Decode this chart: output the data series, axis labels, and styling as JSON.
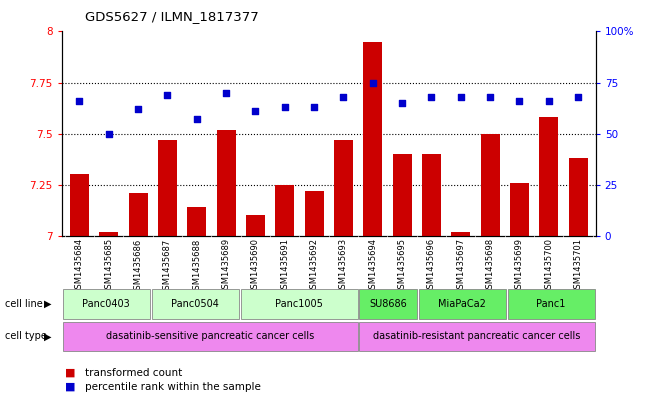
{
  "title": "GDS5627 / ILMN_1817377",
  "samples": [
    "GSM1435684",
    "GSM1435685",
    "GSM1435686",
    "GSM1435687",
    "GSM1435688",
    "GSM1435689",
    "GSM1435690",
    "GSM1435691",
    "GSM1435692",
    "GSM1435693",
    "GSM1435694",
    "GSM1435695",
    "GSM1435696",
    "GSM1435697",
    "GSM1435698",
    "GSM1435699",
    "GSM1435700",
    "GSM1435701"
  ],
  "transformed_count": [
    7.3,
    7.02,
    7.21,
    7.47,
    7.14,
    7.52,
    7.1,
    7.25,
    7.22,
    7.47,
    7.95,
    7.4,
    7.4,
    7.02,
    7.5,
    7.26,
    7.58,
    7.38
  ],
  "percentile_rank": [
    66,
    50,
    62,
    69,
    57,
    70,
    61,
    63,
    63,
    68,
    75,
    65,
    68,
    68,
    68,
    66,
    66,
    68
  ],
  "cell_lines": [
    {
      "name": "Panc0403",
      "start": 0,
      "end": 2,
      "color": "#ccffcc"
    },
    {
      "name": "Panc0504",
      "start": 3,
      "end": 5,
      "color": "#ccffcc"
    },
    {
      "name": "Panc1005",
      "start": 6,
      "end": 9,
      "color": "#ccffcc"
    },
    {
      "name": "SU8686",
      "start": 10,
      "end": 11,
      "color": "#66ee66"
    },
    {
      "name": "MiaPaCa2",
      "start": 12,
      "end": 14,
      "color": "#66ee66"
    },
    {
      "name": "Panc1",
      "start": 15,
      "end": 17,
      "color": "#66ee66"
    }
  ],
  "cell_types": [
    {
      "name": "dasatinib-sensitive pancreatic cancer cells",
      "start": 0,
      "end": 9,
      "color": "#ee88ee"
    },
    {
      "name": "dasatinib-resistant pancreatic cancer cells",
      "start": 10,
      "end": 17,
      "color": "#ee88ee"
    }
  ],
  "ylim_left": [
    7.0,
    8.0
  ],
  "ylim_right": [
    0,
    100
  ],
  "yticks_left": [
    7.0,
    7.25,
    7.5,
    7.75,
    8.0
  ],
  "yticks_right": [
    0,
    25,
    50,
    75,
    100
  ],
  "bar_color": "#cc0000",
  "scatter_color": "#0000cc",
  "sample_bg": "#d0d0d0"
}
